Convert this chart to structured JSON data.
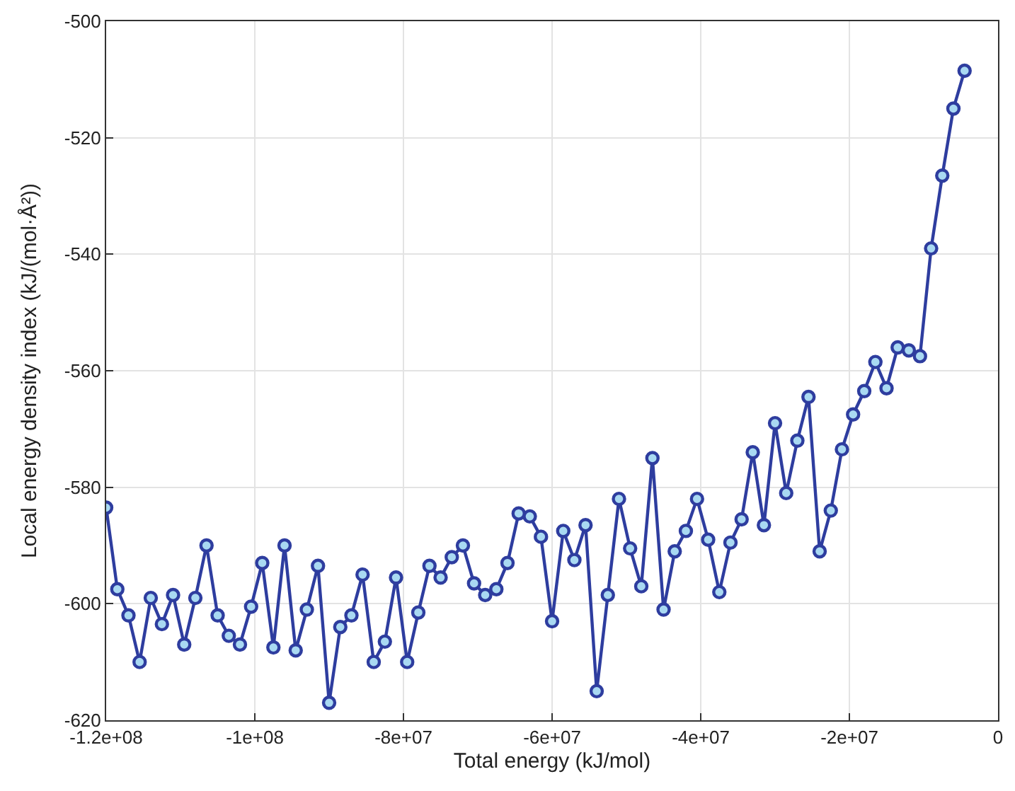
{
  "chart_data": {
    "type": "line",
    "xlabel": "Total energy (kJ/mol)",
    "ylabel": "Local energy density index (kJ/(mol·Å²))",
    "x": [
      -120000000,
      -118500000,
      -117000000,
      -115500000,
      -114000000,
      -112500000,
      -111000000,
      -109500000,
      -108000000,
      -106500000,
      -105000000,
      -103500000,
      -102000000,
      -100500000,
      -99000000,
      -97500000,
      -96000000,
      -94500000,
      -93000000,
      -91500000,
      -90000000,
      -88500000,
      -87000000,
      -85500000,
      -84000000,
      -82500000,
      -81000000,
      -79500000,
      -78000000,
      -76500000,
      -75000000,
      -73500000,
      -72000000,
      -70500000,
      -69000000,
      -67500000,
      -66000000,
      -64500000,
      -63000000,
      -61500000,
      -60000000,
      -58500000,
      -57000000,
      -55500000,
      -54000000,
      -52500000,
      -51000000,
      -49500000,
      -48000000,
      -46500000,
      -45000000,
      -43500000,
      -42000000,
      -40500000,
      -39000000,
      -37500000,
      -36000000,
      -34500000,
      -33000000,
      -31500000,
      -30000000,
      -28500000,
      -27000000,
      -25500000,
      -24000000,
      -22500000,
      -21000000,
      -19500000,
      -18000000,
      -16500000,
      -15000000,
      -13500000,
      -12000000,
      -10500000,
      -9000000,
      -7500000,
      -6000000,
      -4500000
    ],
    "series": [
      {
        "color": "#2e3d9f",
        "values": [
          -583.5,
          -597.5,
          -602,
          -610,
          -599,
          -603.5,
          -598.5,
          -607,
          -599,
          -590,
          -602,
          -605.5,
          -607,
          -600.5,
          -593,
          -607.5,
          -590,
          -608,
          -601,
          -593.5,
          -617,
          -604,
          -602,
          -595,
          -610,
          -606.5,
          -595.5,
          -610,
          -601.5,
          -593.5,
          -595.5,
          -592,
          -590,
          -596.5,
          -598.5,
          -597.5,
          -593,
          -584.5,
          -585,
          -588.5,
          -603,
          -587.5,
          -592.5,
          -586.5,
          -615,
          -598.5,
          -582,
          -590.5,
          -597,
          -575,
          -601,
          -591,
          -587.5,
          -582,
          -589,
          -598,
          -589.5,
          -585.5,
          -574,
          -586.5,
          -569,
          -581,
          -572,
          -564.5,
          -591,
          -584,
          -573.5,
          -567.5,
          -563.5,
          -558.5,
          -563,
          -556,
          -556.5,
          -557.5,
          -539,
          -526.5,
          -515,
          -508.5
        ]
      }
    ],
    "xlim": [
      -120000000,
      0
    ],
    "xticks": [
      {
        "value": -120000000,
        "label": "-1.2e+08"
      },
      {
        "value": -100000000,
        "label": "-1e+08"
      },
      {
        "value": -80000000,
        "label": "-8e+07"
      },
      {
        "value": -60000000,
        "label": "-6e+07"
      },
      {
        "value": -40000000,
        "label": "-4e+07"
      },
      {
        "value": -20000000,
        "label": "-2e+07"
      },
      0
    ],
    "ylim": [
      -620,
      -500
    ],
    "yticks": [
      -620,
      -600,
      -580,
      -560,
      -540,
      -520,
      -500
    ],
    "grid": true,
    "marker": "circle",
    "line_style": "solid"
  }
}
